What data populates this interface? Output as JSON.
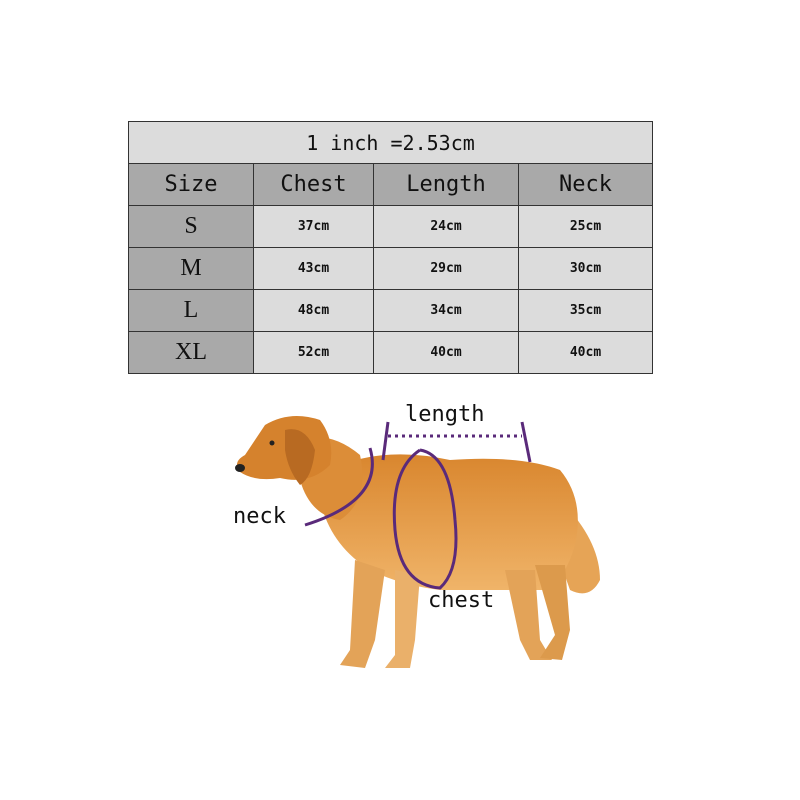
{
  "table": {
    "title": "1 inch =2.53cm",
    "headers": [
      "Size",
      "Chest",
      "Length",
      "Neck"
    ],
    "rows": [
      [
        "S",
        "37cm",
        "24cm",
        "25cm"
      ],
      [
        "M",
        "43cm",
        "29cm",
        "30cm"
      ],
      [
        "L",
        "48cm",
        "34cm",
        "35cm"
      ],
      [
        "XL",
        "52cm",
        "40cm",
        "40cm"
      ]
    ]
  },
  "diagram": {
    "length_label": "length",
    "neck_label": "neck",
    "chest_label": "chest",
    "measure_color": "#5a2a7a"
  }
}
